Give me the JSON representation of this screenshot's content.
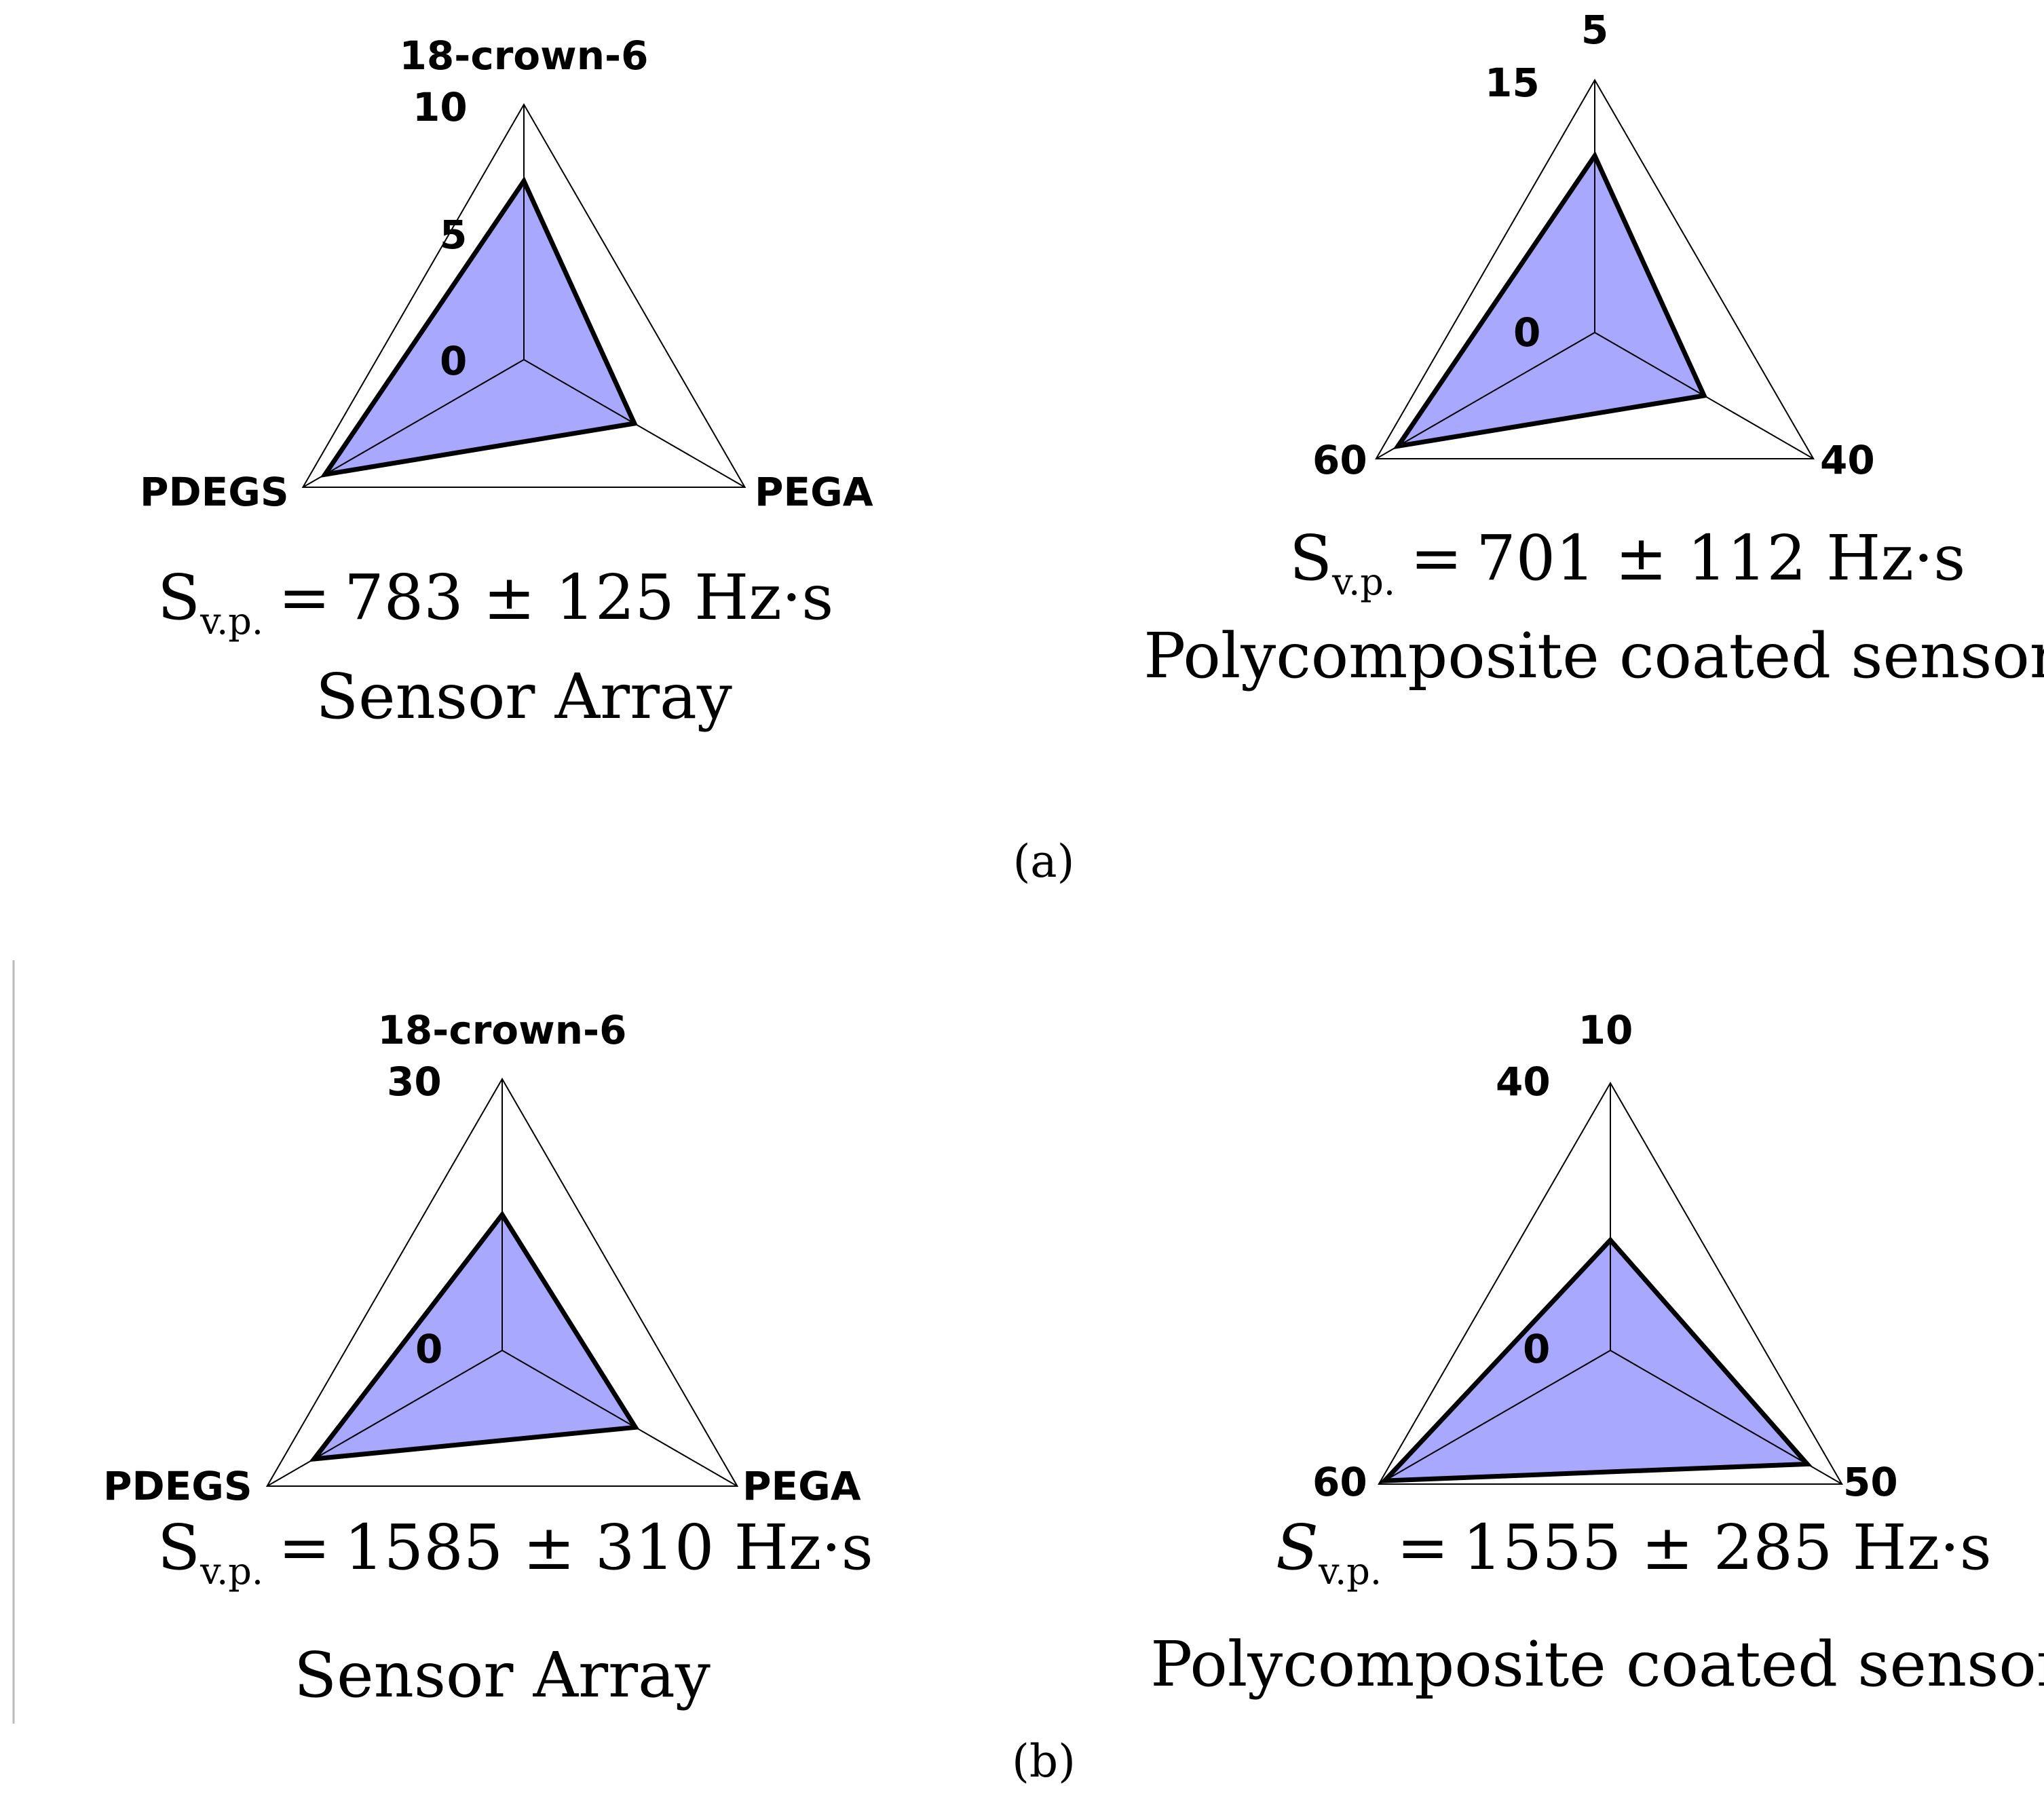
{
  "chart_data": [
    {
      "type": "radar",
      "panel": "a",
      "axes": [
        "18-crown-6",
        "PEGA",
        "PDEGS"
      ],
      "axis_max": [
        10,
        10,
        10
      ],
      "tick_labels": [
        "10",
        "5",
        "0"
      ],
      "values": [
        7,
        5,
        9
      ],
      "formula_value": "783 ± 125 Hz·s",
      "subtitle": "Sensor Array"
    },
    {
      "type": "radar",
      "panel": "a",
      "axes": [
        "",
        "",
        ""
      ],
      "axis_max": [
        15,
        15,
        15
      ],
      "tick_labels": [
        "5",
        "15",
        "40",
        "60",
        "0"
      ],
      "values": [
        10.5,
        7.5,
        13.5
      ],
      "formula_value": "701 ± 112 Hz·s",
      "subtitle": "Polycomposite coated sensor"
    },
    {
      "type": "radar",
      "panel": "b",
      "axes": [
        "18-crown-6",
        "PEGA",
        "PDEGS"
      ],
      "axis_max": [
        30,
        30,
        30
      ],
      "tick_labels": [
        "30",
        "0"
      ],
      "values": [
        15,
        17,
        24
      ],
      "formula_value": "1585 ± 310 Hz·s",
      "subtitle": "Sensor Array"
    },
    {
      "type": "radar",
      "panel": "b",
      "axes": [
        "",
        "",
        ""
      ],
      "axis_max": [
        40,
        40,
        40
      ],
      "tick_labels": [
        "10",
        "40",
        "50",
        "60",
        "0"
      ],
      "values": [
        16.5,
        34,
        39
      ],
      "formula_value": "1555 ± 285 Hz·s",
      "subtitle": "Polycomposite coated sensor"
    }
  ],
  "formula": {
    "symbol": "S",
    "subscript": "v.p.",
    "equals": "="
  },
  "panels": {
    "a": "(a)",
    "b": "(b)"
  },
  "colors": {
    "fill": "#9999ff",
    "outline": "#000000",
    "frame": "#000000"
  }
}
